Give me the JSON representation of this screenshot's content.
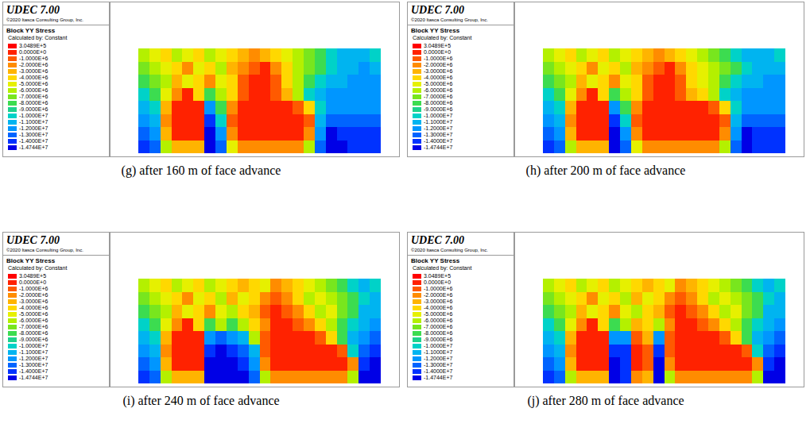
{
  "chart_data": [
    {
      "type": "heatmap",
      "title": "(g) after 160 m of face advance",
      "tick_labels": false,
      "cells": [
        [
          -5500000.0,
          -4500000.0,
          -3500000.0,
          -5500000.0,
          -4500000.0,
          -3500000.0,
          -5500000.0,
          -4500000.0,
          -3500000.0,
          -2500000.0,
          -1500000.0,
          -2500000.0,
          -3500000.0,
          -4500000.0,
          -5500000.0,
          -6500000.0,
          -7500000.0,
          -9500000.0,
          -10500000.0,
          -10500000.0,
          -10500000.0,
          -9500000.0
        ],
        [
          -6500000.0,
          -5500000.0,
          -4500000.0,
          -3500000.0,
          -1500000.0,
          -4500000.0,
          -3500000.0,
          -5500000.0,
          -2500000.0,
          -1500000.0,
          -500000.0,
          150000.0,
          -1500000.0,
          -3500000.0,
          -5500000.0,
          -6500000.0,
          -7500000.0,
          -9500000.0,
          -10500000.0,
          -10500000.0,
          -11500000.0,
          -10500000.0
        ],
        [
          -7500000.0,
          -6500000.0,
          -5500000.0,
          -2500000.0,
          -4500000.0,
          -3500000.0,
          -1500000.0,
          -4500000.0,
          -3500000.0,
          -500000.0,
          150000.0,
          150000.0,
          -500000.0,
          -3500000.0,
          -5500000.0,
          -7500000.0,
          -9500000.0,
          -10500000.0,
          -10500000.0,
          -11500000.0,
          -11500000.0,
          -11500000.0
        ],
        [
          -9500000.0,
          -7500000.0,
          -4500000.0,
          -1500000.0,
          150000.0,
          -3500000.0,
          -7500000.0,
          -5500000.0,
          -3500000.0,
          -500000.0,
          150000.0,
          150000.0,
          -500000.0,
          -2500000.0,
          -5500000.0,
          -9500000.0,
          -10500000.0,
          -11500000.0,
          -11500000.0,
          -11500000.0,
          -11500000.0,
          -11500000.0
        ],
        [
          -10500000.0,
          -9500000.0,
          -2500000.0,
          150000.0,
          150000.0,
          150000.0,
          -11500000.0,
          -7500000.0,
          -1500000.0,
          150000.0,
          150000.0,
          150000.0,
          150000.0,
          150000.0,
          -500000.0,
          -3500000.0,
          -9500000.0,
          -11500000.0,
          -11500000.0,
          -11500000.0,
          -11500000.0,
          -11500000.0
        ],
        [
          -11500000.0,
          -10500000.0,
          -1500000.0,
          150000.0,
          150000.0,
          150000.0,
          -13500000.0,
          -9500000.0,
          -500000.0,
          150000.0,
          150000.0,
          150000.0,
          150000.0,
          150000.0,
          150000.0,
          -500000.0,
          -10500000.0,
          -12500000.0,
          -12500000.0,
          -12500000.0,
          -12500000.0,
          -12500000.0
        ],
        [
          -12500000.0,
          -11500000.0,
          -2500000.0,
          150000.0,
          150000.0,
          150000.0,
          -14200000.0,
          -11500000.0,
          -1500000.0,
          150000.0,
          150000.0,
          150000.0,
          150000.0,
          150000.0,
          150000.0,
          -1500000.0,
          -11500000.0,
          -14200000.0,
          -13500000.0,
          -13500000.0,
          -13500000.0,
          -13500000.0
        ],
        [
          -13500000.0,
          -12500000.0,
          -5500000.0,
          -2500000.0,
          -2500000.0,
          -2500000.0,
          -14200000.0,
          -12500000.0,
          -4500000.0,
          -1500000.0,
          -1500000.0,
          -1500000.0,
          -1500000.0,
          -1500000.0,
          -1500000.0,
          -5500000.0,
          -12500000.0,
          -14200000.0,
          -14200000.0,
          -13500000.0,
          -13500000.0,
          -13500000.0
        ]
      ]
    },
    {
      "type": "heatmap",
      "title": "(h) after 200 m of face advance",
      "tick_labels": false,
      "cells": [
        [
          -5500000.0,
          -4500000.0,
          -3500000.0,
          -5500000.0,
          -4500000.0,
          -3500000.0,
          -5500000.0,
          -4500000.0,
          -3500000.0,
          -2500000.0,
          -1500000.0,
          -2500000.0,
          -3500000.0,
          -4500000.0,
          -5500000.0,
          -6500000.0,
          -7500000.0,
          -9500000.0,
          -10500000.0,
          -10500000.0,
          -10500000.0,
          -9500000.0
        ],
        [
          -6500000.0,
          -5500000.0,
          -4500000.0,
          -3500000.0,
          -1500000.0,
          -4500000.0,
          -3500000.0,
          -5500000.0,
          -2500000.0,
          -1500000.0,
          -500000.0,
          150000.0,
          -1500000.0,
          -3500000.0,
          -4500000.0,
          -5500000.0,
          -6500000.0,
          -7500000.0,
          -9500000.0,
          -10500000.0,
          -10500000.0,
          -10500000.0
        ],
        [
          -7500000.0,
          -6500000.0,
          -5500000.0,
          -2500000.0,
          -4500000.0,
          -3500000.0,
          -1500000.0,
          -4500000.0,
          -3500000.0,
          -500000.0,
          150000.0,
          150000.0,
          -500000.0,
          -3500000.0,
          -4500000.0,
          -5500000.0,
          -7500000.0,
          -9500000.0,
          -10500000.0,
          -10500000.0,
          -11500000.0,
          -11500000.0
        ],
        [
          -9500000.0,
          -7500000.0,
          -4500000.0,
          -1500000.0,
          150000.0,
          -3500000.0,
          -7500000.0,
          -5500000.0,
          -3500000.0,
          -500000.0,
          150000.0,
          150000.0,
          -500000.0,
          -2500000.0,
          -3500000.0,
          -5500000.0,
          -9500000.0,
          -10500000.0,
          -11500000.0,
          -11500000.0,
          -11500000.0,
          -11500000.0
        ],
        [
          -10500000.0,
          -9500000.0,
          -2500000.0,
          150000.0,
          150000.0,
          150000.0,
          -11500000.0,
          -7500000.0,
          -1500000.0,
          150000.0,
          150000.0,
          150000.0,
          150000.0,
          150000.0,
          150000.0,
          -500000.0,
          -3500000.0,
          -9500000.0,
          -11500000.0,
          -11500000.0,
          -11500000.0,
          -11500000.0
        ],
        [
          -11500000.0,
          -10500000.0,
          -1500000.0,
          150000.0,
          150000.0,
          150000.0,
          -13500000.0,
          -9500000.0,
          -500000.0,
          150000.0,
          150000.0,
          150000.0,
          150000.0,
          150000.0,
          150000.0,
          150000.0,
          -500000.0,
          -10500000.0,
          -12500000.0,
          -12500000.0,
          -12500000.0,
          -12500000.0
        ],
        [
          -12500000.0,
          -11500000.0,
          -2500000.0,
          150000.0,
          150000.0,
          150000.0,
          -14200000.0,
          -11500000.0,
          -1500000.0,
          150000.0,
          150000.0,
          150000.0,
          150000.0,
          150000.0,
          150000.0,
          150000.0,
          -1500000.0,
          -11500000.0,
          -14200000.0,
          -13500000.0,
          -13500000.0,
          -13500000.0
        ],
        [
          -13500000.0,
          -12500000.0,
          -5500000.0,
          -2500000.0,
          -2500000.0,
          -2500000.0,
          -14200000.0,
          -12500000.0,
          -4500000.0,
          -1500000.0,
          -1500000.0,
          -1500000.0,
          -1500000.0,
          -1500000.0,
          -1500000.0,
          -1500000.0,
          -5500000.0,
          -12500000.0,
          -14200000.0,
          -13500000.0,
          -13500000.0,
          -13500000.0
        ]
      ]
    },
    {
      "type": "heatmap",
      "title": "(i) after 240 m of face advance",
      "tick_labels": false,
      "cells": [
        [
          -5500000.0,
          -4500000.0,
          -3500000.0,
          -5500000.0,
          -4500000.0,
          -3500000.0,
          -5500000.0,
          -4500000.0,
          -3500000.0,
          -2500000.0,
          -3500000.0,
          -4500000.0,
          -1500000.0,
          -2500000.0,
          -3500000.0,
          -4500000.0,
          -5500000.0,
          -6500000.0,
          -7500000.0,
          -9500000.0,
          -10500000.0,
          -9500000.0
        ],
        [
          -6500000.0,
          -5500000.0,
          -4500000.0,
          -3500000.0,
          -1500000.0,
          -4500000.0,
          -3500000.0,
          -5500000.0,
          -2500000.0,
          -4500000.0,
          -3500000.0,
          -1500000.0,
          -500000.0,
          -1500000.0,
          -3500000.0,
          -5500000.0,
          -4500000.0,
          -5500000.0,
          -6500000.0,
          -7500000.0,
          -9500000.0,
          -10500000.0
        ],
        [
          -7500000.0,
          -6500000.0,
          -5500000.0,
          -2500000.0,
          -4500000.0,
          -3500000.0,
          -1500000.0,
          -4500000.0,
          -5500000.0,
          -3500000.0,
          -2500000.0,
          -500000.0,
          150000.0,
          -500000.0,
          -1500000.0,
          -3500000.0,
          -5500000.0,
          -4500000.0,
          -6500000.0,
          -7500000.0,
          -10500000.0,
          -10500000.0
        ],
        [
          -9500000.0,
          -7500000.0,
          -4500000.0,
          -1500000.0,
          150000.0,
          -3500000.0,
          -7500000.0,
          -5500000.0,
          -7500000.0,
          -5500000.0,
          -3500000.0,
          -1500000.0,
          150000.0,
          150000.0,
          -500000.0,
          -1500000.0,
          -3500000.0,
          -5500000.0,
          -7500000.0,
          -9500000.0,
          -10500000.0,
          -11500000.0
        ],
        [
          -10500000.0,
          -9500000.0,
          -2500000.0,
          150000.0,
          150000.0,
          150000.0,
          -11500000.0,
          -12500000.0,
          -11500000.0,
          -10500000.0,
          -5500000.0,
          -500000.0,
          150000.0,
          150000.0,
          150000.0,
          150000.0,
          -500000.0,
          -3500000.0,
          -7500000.0,
          -10500000.0,
          -11500000.0,
          -12500000.0
        ],
        [
          -11500000.0,
          -10500000.0,
          -1500000.0,
          150000.0,
          150000.0,
          150000.0,
          -13500000.0,
          -14200000.0,
          -13500000.0,
          -12500000.0,
          -10500000.0,
          -500000.0,
          150000.0,
          150000.0,
          150000.0,
          150000.0,
          150000.0,
          150000.0,
          -500000.0,
          -9500000.0,
          -12500000.0,
          -13500000.0
        ],
        [
          -12500000.0,
          -11500000.0,
          -2500000.0,
          150000.0,
          150000.0,
          150000.0,
          -14200000.0,
          -14200000.0,
          -14200000.0,
          -13500000.0,
          -11500000.0,
          -1500000.0,
          150000.0,
          150000.0,
          150000.0,
          150000.0,
          150000.0,
          150000.0,
          150000.0,
          -1500000.0,
          -13500000.0,
          -14200000.0
        ],
        [
          -13500000.0,
          -12500000.0,
          -5500000.0,
          -2500000.0,
          -2500000.0,
          -2500000.0,
          -14200000.0,
          -14200000.0,
          -14200000.0,
          -14200000.0,
          -12500000.0,
          -5500000.0,
          -1500000.0,
          -1500000.0,
          -1500000.0,
          -1500000.0,
          -1500000.0,
          -1500000.0,
          -1500000.0,
          -5500000.0,
          -14200000.0,
          -14200000.0
        ]
      ]
    },
    {
      "type": "heatmap",
      "title": "(j) after 280 m of face advance",
      "tick_labels": false,
      "cells": [
        [
          -5500000.0,
          -4500000.0,
          -3500000.0,
          -5500000.0,
          -4500000.0,
          -3500000.0,
          -5500000.0,
          -4500000.0,
          -3500000.0,
          -2500000.0,
          -3500000.0,
          -4500000.0,
          -1500000.0,
          -2500000.0,
          -3500000.0,
          -4500000.0,
          -5500000.0,
          -6500000.0,
          -7500000.0,
          -9500000.0,
          -10500000.0,
          -9500000.0
        ],
        [
          -6500000.0,
          -5500000.0,
          -4500000.0,
          -3500000.0,
          -1500000.0,
          -4500000.0,
          -3500000.0,
          -5500000.0,
          -2500000.0,
          -4500000.0,
          -3500000.0,
          -1500000.0,
          -500000.0,
          -1500000.0,
          -3500000.0,
          -5500000.0,
          -4500000.0,
          -5500000.0,
          -6500000.0,
          -7500000.0,
          -9500000.0,
          -10500000.0
        ],
        [
          -7500000.0,
          -6500000.0,
          -5500000.0,
          -2500000.0,
          -4500000.0,
          -3500000.0,
          -1500000.0,
          -4500000.0,
          -5500000.0,
          -3500000.0,
          -2500000.0,
          -500000.0,
          150000.0,
          -500000.0,
          -1500000.0,
          -3500000.0,
          -5500000.0,
          -4500000.0,
          -6500000.0,
          -7500000.0,
          -10500000.0,
          -10500000.0
        ],
        [
          -9500000.0,
          -7500000.0,
          -4500000.0,
          -1500000.0,
          150000.0,
          -3500000.0,
          -7500000.0,
          -5500000.0,
          -2500000.0,
          -3500000.0,
          -5500000.0,
          -1500000.0,
          150000.0,
          150000.0,
          -500000.0,
          -1500000.0,
          -3500000.0,
          -5500000.0,
          -7500000.0,
          -9500000.0,
          -10500000.0,
          -11500000.0
        ],
        [
          -10500000.0,
          -9500000.0,
          -2500000.0,
          150000.0,
          150000.0,
          150000.0,
          -11500000.0,
          -11500000.0,
          -500000.0,
          -2500000.0,
          -11500000.0,
          -500000.0,
          150000.0,
          150000.0,
          150000.0,
          150000.0,
          -500000.0,
          -3500000.0,
          -7500000.0,
          -10500000.0,
          -11500000.0,
          -12500000.0
        ],
        [
          -11500000.0,
          -10500000.0,
          -1500000.0,
          150000.0,
          150000.0,
          150000.0,
          -13500000.0,
          -13500000.0,
          150000.0,
          -500000.0,
          -13500000.0,
          -500000.0,
          150000.0,
          150000.0,
          150000.0,
          150000.0,
          150000.0,
          150000.0,
          -500000.0,
          -9500000.0,
          -12500000.0,
          -13500000.0
        ],
        [
          -12500000.0,
          -11500000.0,
          -2500000.0,
          150000.0,
          150000.0,
          150000.0,
          -14200000.0,
          -13500000.0,
          150000.0,
          -500000.0,
          -14200000.0,
          -1500000.0,
          150000.0,
          150000.0,
          150000.0,
          150000.0,
          150000.0,
          150000.0,
          150000.0,
          -1500000.0,
          -13500000.0,
          -14200000.0
        ],
        [
          -13500000.0,
          -12500000.0,
          -5500000.0,
          -2500000.0,
          -2500000.0,
          -2500000.0,
          -14200000.0,
          -13500000.0,
          -1500000.0,
          -2500000.0,
          -14200000.0,
          -5500000.0,
          -1500000.0,
          -1500000.0,
          -1500000.0,
          -1500000.0,
          -1500000.0,
          -1500000.0,
          -1500000.0,
          -5500000.0,
          -14200000.0,
          -14200000.0
        ]
      ]
    }
  ],
  "legend_box": {
    "header": "UDEC 7.00",
    "credit": "©2020 Itasca Consulting Group, Inc.",
    "title": "Block YY Stress",
    "subtitle": "Calculated by: Constant",
    "ticks": [
      {
        "value": 304890,
        "label": "3.0489E+5"
      },
      {
        "value": 0,
        "label": "0.0000E+0"
      },
      {
        "value": -1000000,
        "label": "-1.0000E+6"
      },
      {
        "value": -2000000,
        "label": "-2.0000E+6"
      },
      {
        "value": -3000000,
        "label": "-3.0000E+6"
      },
      {
        "value": -4000000,
        "label": "-4.0000E+6"
      },
      {
        "value": -5000000,
        "label": "-5.0000E+6"
      },
      {
        "value": -6000000,
        "label": "-6.0000E+6"
      },
      {
        "value": -7000000,
        "label": "-7.0000E+6"
      },
      {
        "value": -8000000,
        "label": "-8.0000E+6"
      },
      {
        "value": -9000000,
        "label": "-9.0000E+6"
      },
      {
        "value": -10000000,
        "label": "-1.0000E+7"
      },
      {
        "value": -11000000,
        "label": "-1.1000E+7"
      },
      {
        "value": -12000000,
        "label": "-1.2000E+7"
      },
      {
        "value": -13000000,
        "label": "-1.3000E+7"
      },
      {
        "value": -14000000,
        "label": "-1.4000E+7"
      },
      {
        "value": -14744000,
        "label": "-1.4744E+7"
      }
    ],
    "colors": [
      "#ff0000",
      "#ff2200",
      "#ff5a00",
      "#ff8c00",
      "#ffb400",
      "#ffd800",
      "#e6f000",
      "#b4f000",
      "#78e61e",
      "#3cdc50",
      "#1ed28c",
      "#00d2c8",
      "#00b4f0",
      "#0096ff",
      "#0064ff",
      "#0032ff",
      "#0000e6"
    ]
  }
}
